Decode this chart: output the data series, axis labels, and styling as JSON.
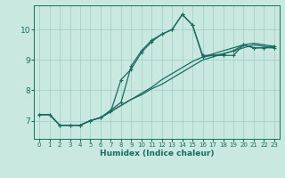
{
  "title": "",
  "xlabel": "Humidex (Indice chaleur)",
  "ylabel": "",
  "bg_color": "#c8e8e0",
  "grid_color": "#a0ccc8",
  "line_color": "#1a6b60",
  "xlim": [
    -0.5,
    23.5
  ],
  "ylim": [
    6.4,
    10.8
  ],
  "yticks": [
    7,
    8,
    9,
    10
  ],
  "xticks": [
    0,
    1,
    2,
    3,
    4,
    5,
    6,
    7,
    8,
    9,
    10,
    11,
    12,
    13,
    14,
    15,
    16,
    17,
    18,
    19,
    20,
    21,
    22,
    23
  ],
  "line1_x": [
    0,
    1,
    2,
    3,
    4,
    5,
    6,
    7,
    8,
    9,
    10,
    11,
    12,
    13,
    14,
    15,
    16,
    17,
    18,
    19,
    20,
    21,
    22,
    23
  ],
  "line1_y": [
    7.2,
    7.2,
    6.85,
    6.85,
    6.85,
    7.0,
    7.1,
    7.3,
    8.35,
    8.7,
    9.25,
    9.6,
    9.85,
    10.0,
    10.5,
    10.15,
    9.1,
    9.15,
    9.15,
    9.15,
    9.5,
    9.4,
    9.4,
    9.4
  ],
  "line2_x": [
    0,
    1,
    2,
    3,
    4,
    5,
    6,
    7,
    8,
    9,
    10,
    11,
    12,
    13,
    14,
    15,
    16,
    17,
    18,
    19,
    20,
    21,
    22,
    23
  ],
  "line2_y": [
    7.2,
    7.2,
    6.85,
    6.85,
    6.85,
    7.0,
    7.1,
    7.35,
    7.6,
    8.8,
    9.3,
    9.65,
    9.85,
    10.0,
    10.5,
    10.15,
    9.15,
    9.15,
    9.2,
    9.3,
    9.5,
    9.4,
    9.4,
    9.45
  ],
  "line3_x": [
    0,
    1,
    2,
    3,
    4,
    5,
    6,
    7,
    8,
    9,
    10,
    11,
    12,
    13,
    14,
    15,
    16,
    17,
    18,
    19,
    20,
    21,
    22,
    23
  ],
  "line3_y": [
    7.2,
    7.2,
    6.85,
    6.85,
    6.85,
    7.0,
    7.1,
    7.3,
    7.5,
    7.7,
    7.9,
    8.1,
    8.35,
    8.55,
    8.75,
    8.95,
    9.1,
    9.2,
    9.3,
    9.4,
    9.5,
    9.55,
    9.5,
    9.45
  ],
  "line4_x": [
    0,
    1,
    2,
    3,
    4,
    5,
    6,
    7,
    8,
    9,
    10,
    11,
    12,
    13,
    14,
    15,
    16,
    17,
    18,
    19,
    20,
    21,
    22,
    23
  ],
  "line4_y": [
    7.2,
    7.2,
    6.85,
    6.85,
    6.85,
    7.0,
    7.1,
    7.3,
    7.5,
    7.7,
    7.85,
    8.05,
    8.2,
    8.4,
    8.6,
    8.8,
    9.0,
    9.1,
    9.2,
    9.3,
    9.4,
    9.5,
    9.45,
    9.4
  ]
}
